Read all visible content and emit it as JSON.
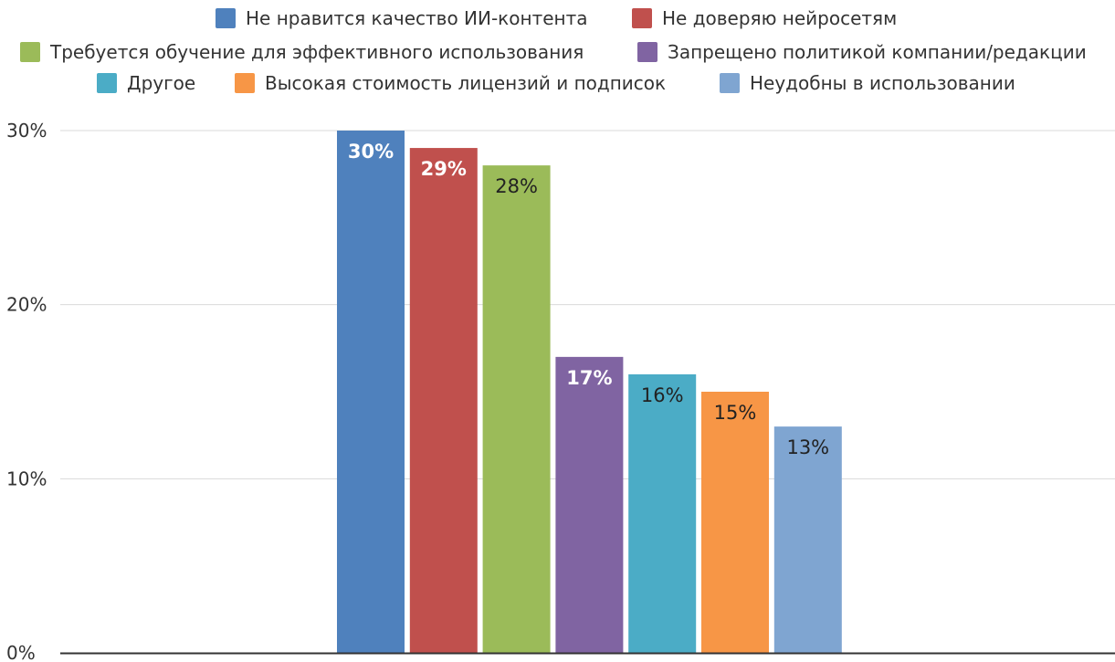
{
  "chart_data": {
    "type": "bar",
    "categories": [
      "Не нравится качество ИИ-контента",
      "Не доверяю нейросетям",
      "Требуется обучение для эффективного использования",
      "Запрещено политикой компании/редакции",
      "Другое",
      "Высокая стоимость лицензий и подписок",
      "Неудобны в использовании"
    ],
    "values": [
      30,
      29,
      28,
      17,
      16,
      15,
      13
    ],
    "data_labels": [
      "30%",
      "29%",
      "28%",
      "17%",
      "16%",
      "15%",
      "13%"
    ],
    "colors": [
      "#4f81bd",
      "#c0504d",
      "#9bbb59",
      "#8064a2",
      "#4bacc6",
      "#f79646",
      "#7fa5d1"
    ],
    "label_colors": [
      "#ffffff",
      "#ffffff",
      "#222222",
      "#ffffff",
      "#222222",
      "#222222",
      "#222222"
    ],
    "legend": {
      "placement": "top",
      "entries": [
        "Не нравится качество ИИ-контента",
        "Не доверяю нейросетям",
        "Требуется обучение для эффективного использования",
        "Запрещено политикой компании/редакции",
        "Другое",
        "Высокая стоимость лицензий и подписок",
        "Неудобны в использовании"
      ]
    },
    "y_ticks": [
      0,
      10,
      20,
      30
    ],
    "y_tick_labels": [
      "0%",
      "10%",
      "20%",
      "30%"
    ],
    "ylim": [
      0,
      30
    ],
    "grid": true,
    "title": "",
    "xlabel": "",
    "ylabel": ""
  }
}
